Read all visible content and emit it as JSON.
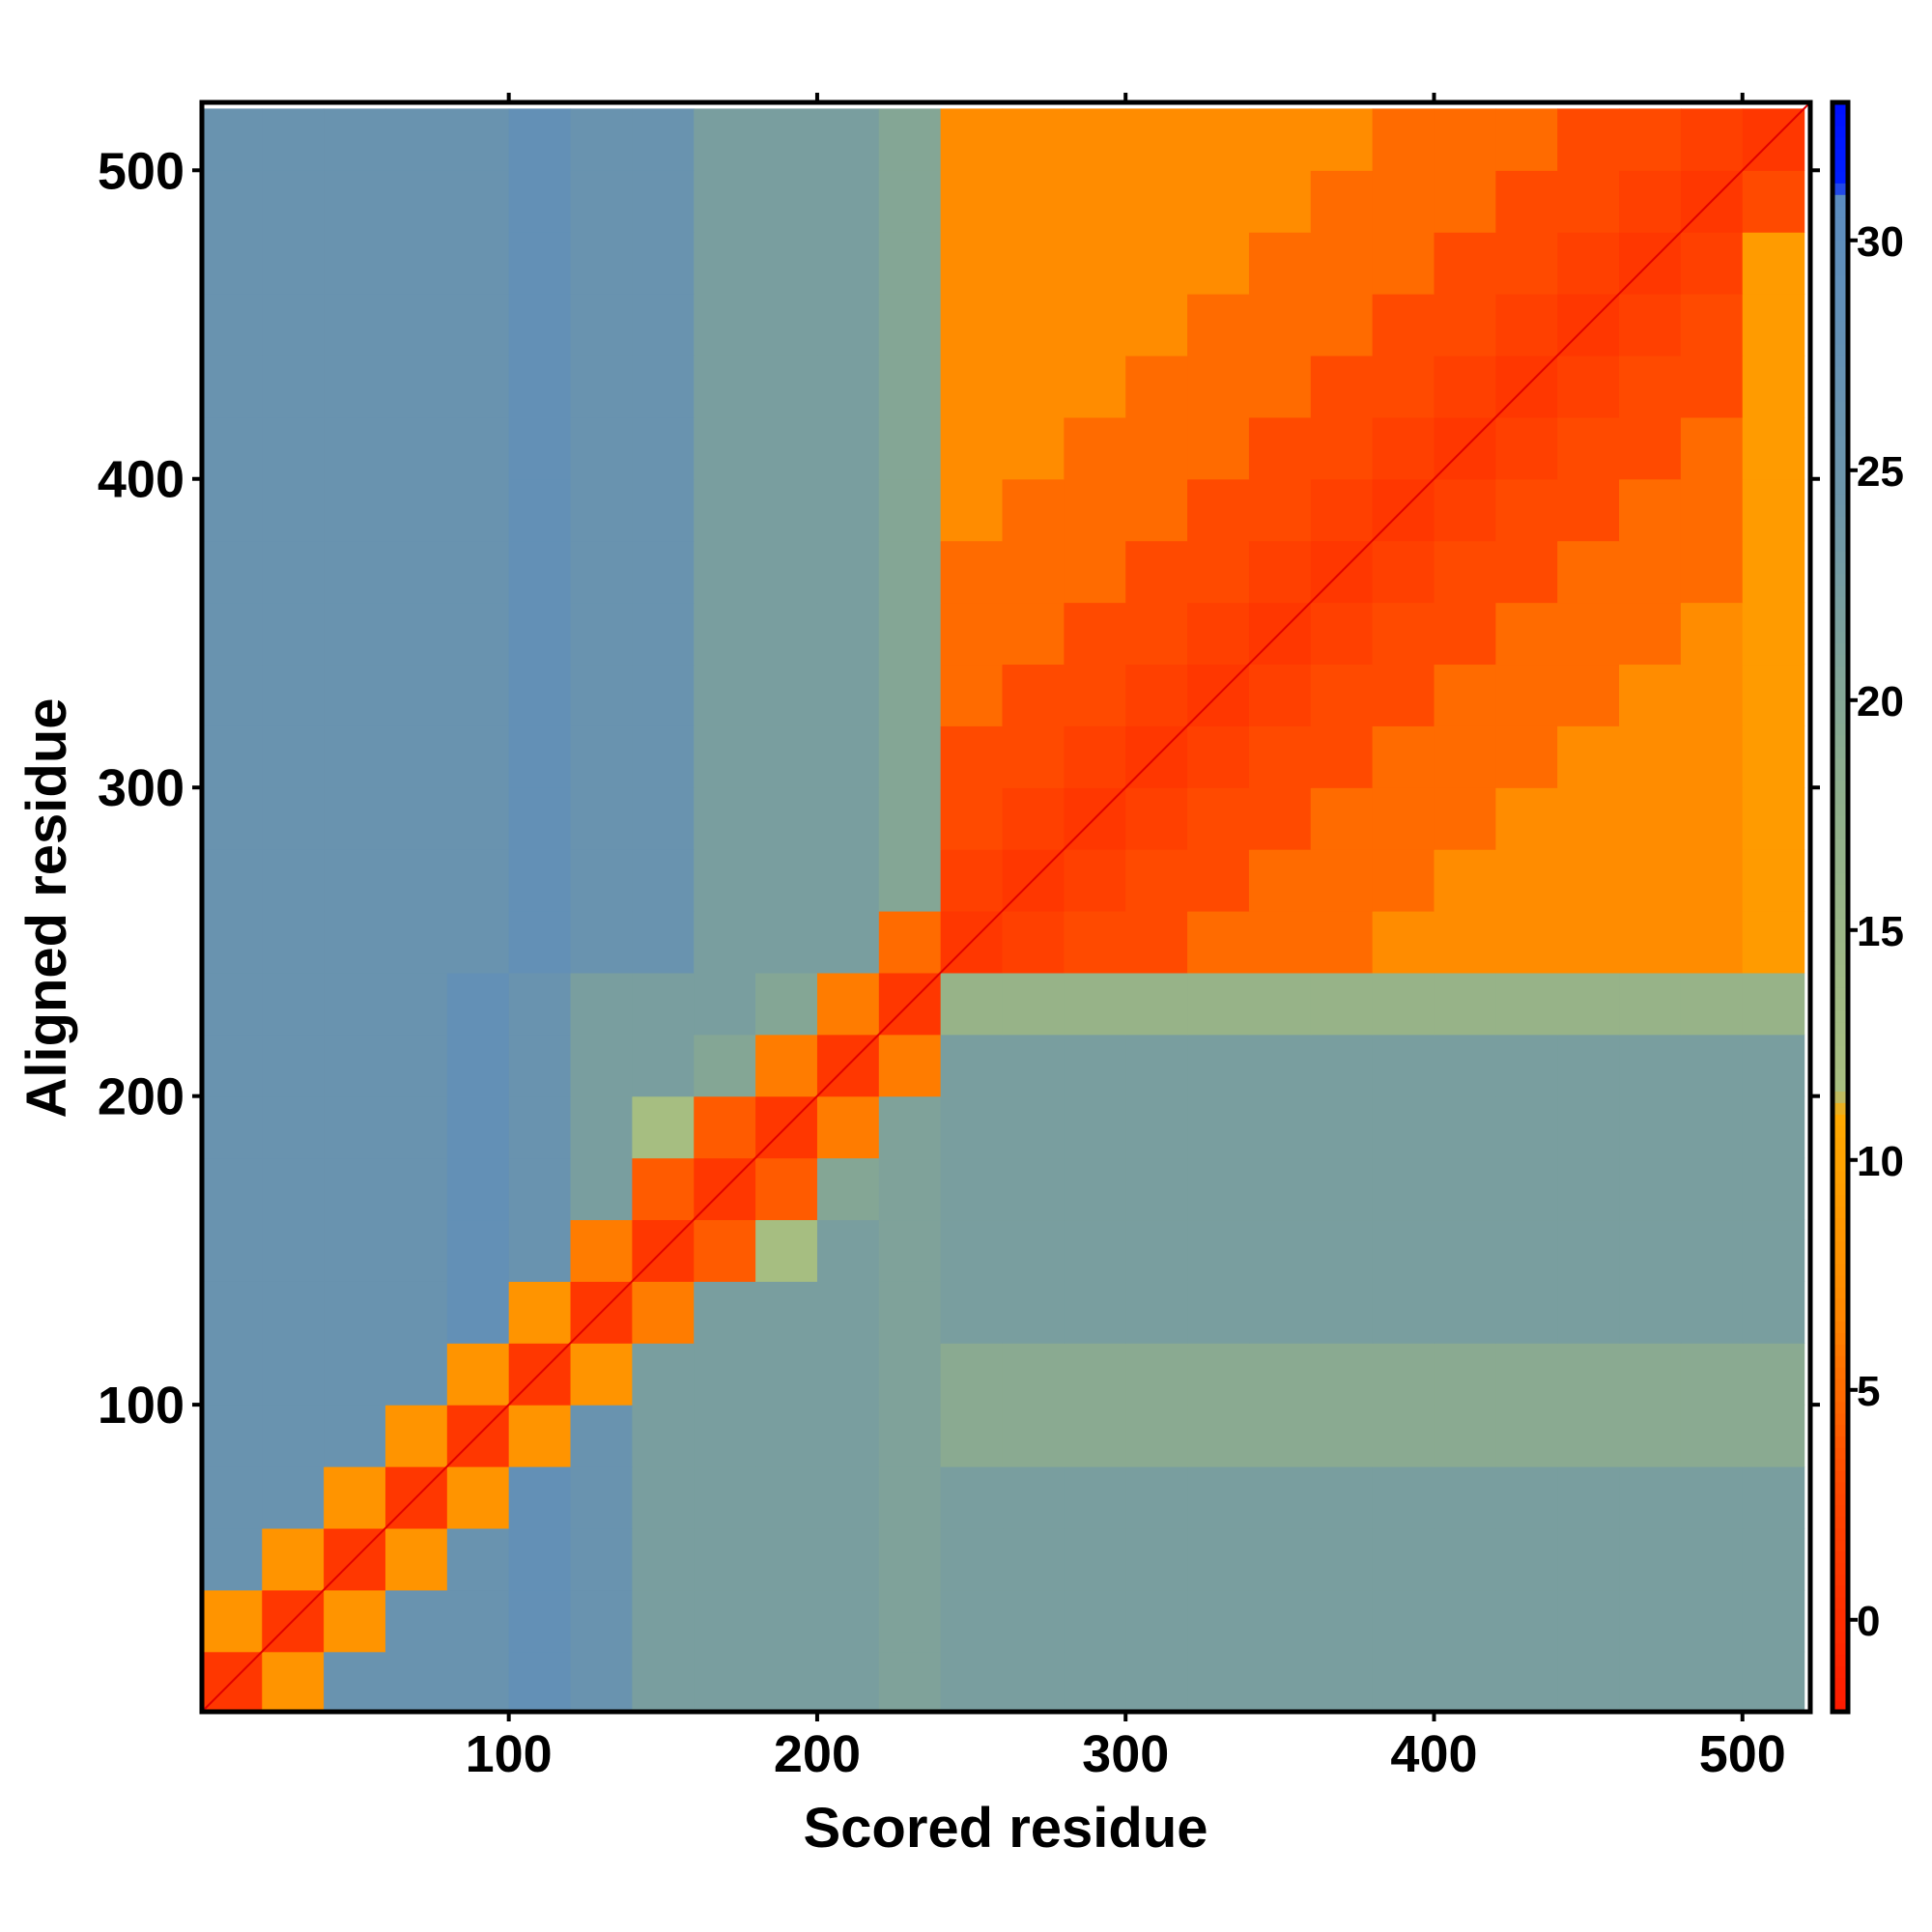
{
  "chart_data": {
    "type": "heatmap",
    "title": "",
    "xlabel": "Scored residue",
    "ylabel": "Aligned residue",
    "xlim": [
      0.5,
      522
    ],
    "ylim": [
      0.5,
      522
    ],
    "x_ticks": [
      100,
      200,
      300,
      400,
      500
    ],
    "y_ticks": [
      100,
      200,
      300,
      400,
      500
    ],
    "bin_size": 20,
    "x_bin_centers": [
      10,
      30,
      50,
      70,
      90,
      110,
      130,
      150,
      170,
      190,
      210,
      230,
      250,
      270,
      290,
      310,
      330,
      350,
      370,
      390,
      410,
      430,
      450,
      470,
      490,
      510
    ],
    "y_bin_centers_bottom_to_top": [
      10,
      30,
      50,
      70,
      90,
      110,
      130,
      150,
      170,
      190,
      210,
      230,
      250,
      270,
      290,
      310,
      330,
      350,
      370,
      390,
      410,
      430,
      450,
      470,
      490,
      510
    ],
    "values": [
      [
        1,
        8,
        26,
        26,
        26,
        28,
        26,
        22,
        22,
        22,
        22,
        21,
        22,
        22,
        22,
        22,
        22,
        22,
        22,
        22,
        22,
        22,
        22,
        22,
        22,
        22
      ],
      [
        8,
        1,
        8,
        26,
        26,
        28,
        26,
        22,
        22,
        22,
        22,
        21,
        22,
        22,
        22,
        22,
        22,
        22,
        22,
        22,
        22,
        22,
        22,
        22,
        22,
        22
      ],
      [
        26,
        8,
        1,
        8,
        26,
        28,
        26,
        22,
        22,
        22,
        22,
        21,
        22,
        22,
        22,
        22,
        22,
        22,
        22,
        22,
        22,
        22,
        22,
        22,
        22,
        22
      ],
      [
        26,
        26,
        8,
        1,
        8,
        28,
        26,
        22,
        22,
        22,
        22,
        21,
        22,
        22,
        22,
        22,
        22,
        22,
        22,
        22,
        22,
        22,
        22,
        22,
        22,
        22
      ],
      [
        26,
        26,
        26,
        8,
        1,
        8,
        26,
        22,
        22,
        22,
        22,
        21,
        19,
        19,
        19,
        19,
        19,
        19,
        19,
        19,
        19,
        19,
        19,
        19,
        19,
        19
      ],
      [
        26,
        26,
        26,
        26,
        8,
        1,
        8,
        22,
        22,
        22,
        22,
        21,
        19,
        19,
        19,
        19,
        19,
        19,
        19,
        19,
        19,
        19,
        19,
        19,
        19,
        19
      ],
      [
        26,
        26,
        26,
        26,
        28,
        8,
        1,
        6,
        22,
        22,
        22,
        21,
        22,
        22,
        22,
        22,
        22,
        22,
        22,
        22,
        22,
        22,
        22,
        22,
        22,
        22
      ],
      [
        26,
        26,
        26,
        26,
        28,
        26,
        6,
        1,
        4,
        12,
        22,
        21,
        22,
        22,
        22,
        22,
        22,
        22,
        22,
        22,
        22,
        22,
        22,
        22,
        22,
        22
      ],
      [
        26,
        26,
        26,
        26,
        28,
        26,
        22,
        4,
        1,
        4,
        20,
        21,
        22,
        22,
        22,
        22,
        22,
        22,
        22,
        22,
        22,
        22,
        22,
        22,
        22,
        22
      ],
      [
        26,
        26,
        26,
        26,
        28,
        26,
        22,
        12,
        4,
        1,
        6,
        21,
        22,
        22,
        22,
        22,
        22,
        22,
        22,
        22,
        22,
        22,
        22,
        22,
        22,
        22
      ],
      [
        26,
        26,
        26,
        26,
        28,
        26,
        22,
        22,
        20,
        6,
        1,
        6,
        22,
        22,
        22,
        22,
        22,
        22,
        22,
        22,
        22,
        22,
        22,
        22,
        22,
        22
      ],
      [
        26,
        26,
        26,
        26,
        28,
        26,
        22,
        22,
        22,
        20,
        6,
        1,
        16,
        16,
        16,
        16,
        16,
        16,
        16,
        16,
        16,
        16,
        16,
        16,
        16,
        16
      ],
      [
        26,
        26,
        26,
        26,
        26,
        28,
        26,
        26,
        22,
        22,
        22,
        5,
        1,
        2,
        3,
        3,
        5,
        5,
        5,
        7,
        7,
        7,
        7,
        7,
        7,
        9
      ],
      [
        26,
        26,
        26,
        26,
        26,
        28,
        26,
        26,
        22,
        22,
        22,
        20,
        2,
        1,
        2,
        3,
        3,
        5,
        5,
        5,
        7,
        7,
        7,
        7,
        7,
        9
      ],
      [
        26,
        26,
        26,
        26,
        26,
        28,
        26,
        26,
        22,
        22,
        22,
        20,
        3,
        2,
        1,
        2,
        3,
        3,
        5,
        5,
        5,
        7,
        7,
        7,
        7,
        9
      ],
      [
        26,
        26,
        26,
        26,
        26,
        28,
        26,
        26,
        22,
        22,
        22,
        20,
        3,
        3,
        2,
        1,
        2,
        3,
        3,
        5,
        5,
        5,
        7,
        7,
        7,
        9
      ],
      [
        26,
        26,
        26,
        26,
        26,
        28,
        26,
        26,
        22,
        22,
        22,
        20,
        5,
        3,
        3,
        2,
        1,
        2,
        3,
        3,
        5,
        5,
        5,
        7,
        7,
        9
      ],
      [
        26,
        26,
        26,
        26,
        26,
        28,
        26,
        26,
        22,
        22,
        22,
        20,
        5,
        5,
        3,
        3,
        2,
        1,
        2,
        3,
        3,
        5,
        5,
        5,
        7,
        9
      ],
      [
        26,
        26,
        26,
        26,
        26,
        28,
        26,
        26,
        22,
        22,
        22,
        20,
        5,
        5,
        5,
        3,
        3,
        2,
        1,
        2,
        3,
        3,
        5,
        5,
        5,
        9
      ],
      [
        26,
        26,
        26,
        26,
        26,
        28,
        26,
        26,
        22,
        22,
        22,
        20,
        7,
        5,
        5,
        5,
        3,
        3,
        2,
        1,
        2,
        3,
        3,
        5,
        5,
        9
      ],
      [
        26,
        26,
        26,
        26,
        26,
        28,
        26,
        26,
        22,
        22,
        22,
        20,
        7,
        7,
        5,
        5,
        5,
        3,
        3,
        2,
        1,
        2,
        3,
        3,
        5,
        9
      ],
      [
        26,
        26,
        26,
        26,
        26,
        28,
        26,
        26,
        22,
        22,
        22,
        20,
        7,
        7,
        7,
        5,
        5,
        5,
        3,
        3,
        2,
        1,
        2,
        3,
        3,
        9
      ],
      [
        26,
        26,
        26,
        26,
        26,
        28,
        26,
        26,
        22,
        22,
        22,
        20,
        7,
        7,
        7,
        7,
        5,
        5,
        5,
        3,
        3,
        2,
        1,
        2,
        3,
        9
      ],
      [
        26,
        26,
        26,
        26,
        26,
        28,
        26,
        26,
        22,
        22,
        22,
        20,
        7,
        7,
        7,
        7,
        7,
        5,
        5,
        5,
        3,
        3,
        2,
        1,
        2,
        9
      ],
      [
        26,
        26,
        26,
        26,
        26,
        28,
        26,
        26,
        22,
        22,
        22,
        20,
        7,
        7,
        7,
        7,
        7,
        7,
        5,
        5,
        5,
        3,
        3,
        2,
        1,
        3
      ],
      [
        26,
        26,
        26,
        26,
        26,
        28,
        26,
        26,
        22,
        22,
        22,
        20,
        7,
        7,
        7,
        7,
        7,
        7,
        7,
        5,
        5,
        5,
        3,
        3,
        2,
        1
      ]
    ],
    "colorbar": {
      "range": [
        -2,
        33
      ],
      "ticks": [
        0,
        5,
        10,
        15,
        20,
        25,
        30
      ],
      "stops": [
        {
          "v": -2,
          "color": "#ff1a00"
        },
        {
          "v": 3,
          "color": "#ff4a00"
        },
        {
          "v": 7,
          "color": "#ff8c00"
        },
        {
          "v": 11,
          "color": "#ffaa00"
        },
        {
          "v": 11.5,
          "color": "#a8bf80"
        },
        {
          "v": 18,
          "color": "#8fae8c"
        },
        {
          "v": 24,
          "color": "#6e96a8"
        },
        {
          "v": 31,
          "color": "#5b8cc0"
        },
        {
          "v": 31.2,
          "color": "#0020ff"
        },
        {
          "v": 33,
          "color": "#0010ff"
        }
      ]
    },
    "legend": "right"
  }
}
